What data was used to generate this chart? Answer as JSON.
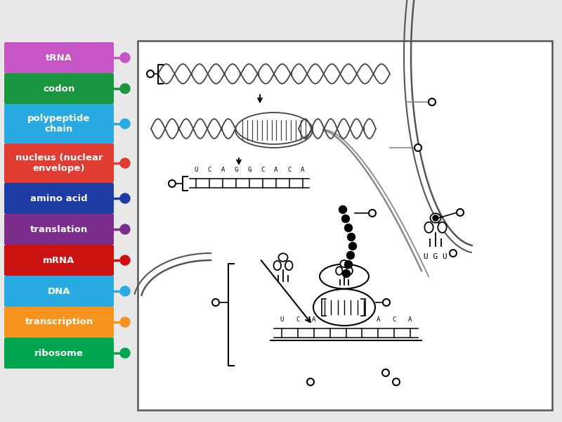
{
  "legend_items": [
    {
      "label": "tRNA",
      "color": "#c655c6",
      "dot_color": "#c655c6",
      "multiline": false
    },
    {
      "label": "codon",
      "color": "#1a9641",
      "dot_color": "#1a9641",
      "multiline": false
    },
    {
      "label": "polypeptide\nchain",
      "color": "#29abe2",
      "dot_color": "#29abe2",
      "multiline": true
    },
    {
      "label": "nucleus (nuclear\nenvelope)",
      "color": "#e03c31",
      "dot_color": "#e03c31",
      "multiline": true
    },
    {
      "label": "amino acid",
      "color": "#1e3ca6",
      "dot_color": "#1e3ca6",
      "multiline": false
    },
    {
      "label": "translation",
      "color": "#7b2d8b",
      "dot_color": "#7b2d8b",
      "multiline": false
    },
    {
      "label": "mRNA",
      "color": "#cc1111",
      "dot_color": "#cc1111",
      "multiline": false
    },
    {
      "label": "DNA",
      "color": "#29abe2",
      "dot_color": "#29abe2",
      "multiline": false
    },
    {
      "label": "transcription",
      "color": "#f7941d",
      "dot_color": "#f7941d",
      "multiline": false
    },
    {
      "label": "ribosome",
      "color": "#00a550",
      "dot_color": "#00a550",
      "multiline": false
    }
  ],
  "bg_color": "#e8e8e8",
  "diagram_bg": "#ffffff"
}
